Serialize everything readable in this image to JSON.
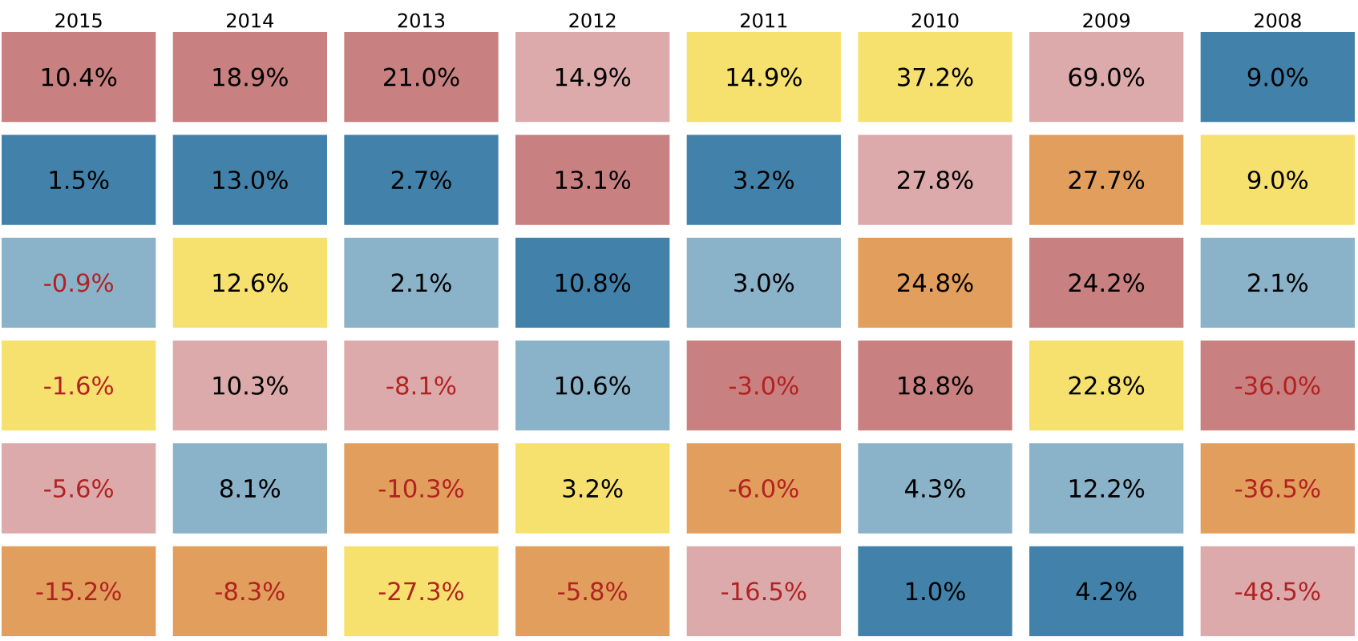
{
  "chart_data": {
    "type": "heatmap",
    "categories": [
      "2015",
      "2014",
      "2013",
      "2012",
      "2011",
      "2010",
      "2009",
      "2008"
    ],
    "y_categories": [
      null,
      null,
      null,
      null,
      null,
      null
    ],
    "cells": [
      [
        10.4,
        18.9,
        21.0,
        14.9,
        14.9,
        37.2,
        69.0,
        9.0
      ],
      [
        1.5,
        13.0,
        2.7,
        13.1,
        3.2,
        27.8,
        27.7,
        9.0
      ],
      [
        -0.9,
        12.6,
        2.1,
        10.8,
        3.0,
        24.8,
        24.2,
        2.1
      ],
      [
        -1.6,
        10.3,
        -8.1,
        10.6,
        -3.0,
        18.8,
        22.8,
        -36.0
      ],
      [
        -5.6,
        8.1,
        -10.3,
        3.2,
        -6.0,
        4.3,
        12.2,
        -36.5
      ],
      [
        -15.2,
        -8.3,
        -27.3,
        -5.8,
        -16.5,
        1.0,
        4.2,
        -48.5
      ]
    ],
    "cell_labels": [
      [
        "10.4%",
        "18.9%",
        "21.0%",
        "14.9%",
        "14.9%",
        "37.2%",
        "69.0%",
        "9.0%"
      ],
      [
        "1.5%",
        "13.0%",
        "2.7%",
        "13.1%",
        "3.2%",
        "27.8%",
        "27.7%",
        "9.0%"
      ],
      [
        "-0.9%",
        "12.6%",
        "2.1%",
        "10.8%",
        "3.0%",
        "24.8%",
        "24.2%",
        "2.1%"
      ],
      [
        "-1.6%",
        "10.3%",
        "-8.1%",
        "10.6%",
        "-3.0%",
        "18.8%",
        "22.8%",
        "-36.0%"
      ],
      [
        "-5.6%",
        "8.1%",
        "-10.3%",
        "3.2%",
        "-6.0%",
        "4.3%",
        "12.2%",
        "-36.5%"
      ],
      [
        "-15.2%",
        "-8.3%",
        "-27.3%",
        "-5.8%",
        "-16.5%",
        "1.0%",
        "4.2%",
        "-48.5%"
      ]
    ],
    "colors": [
      [
        "#c98080",
        "#c98080",
        "#c98080",
        "#dcaaab",
        "#f7e16e",
        "#f7e16e",
        "#dcaaab",
        "#4282aa"
      ],
      [
        "#4282aa",
        "#4282aa",
        "#4282aa",
        "#c98080",
        "#4282aa",
        "#dcaaab",
        "#e19e5c",
        "#f7e16e"
      ],
      [
        "#8ab2c9",
        "#f7e16e",
        "#8ab2c9",
        "#4282aa",
        "#8ab2c9",
        "#e19e5c",
        "#c98080",
        "#8ab2c9"
      ],
      [
        "#f7e16e",
        "#dcaaab",
        "#dcaaab",
        "#8ab2c9",
        "#c98080",
        "#c98080",
        "#f7e16e",
        "#c98080"
      ],
      [
        "#dcaaab",
        "#8ab2c9",
        "#e19e5c",
        "#f7e16e",
        "#e19e5c",
        "#8ab2c9",
        "#8ab2c9",
        "#e19e5c"
      ],
      [
        "#e19e5c",
        "#e19e5c",
        "#f7e16e",
        "#e19e5c",
        "#dcaaab",
        "#4282aa",
        "#4282aa",
        "#dcaaab"
      ]
    ]
  }
}
